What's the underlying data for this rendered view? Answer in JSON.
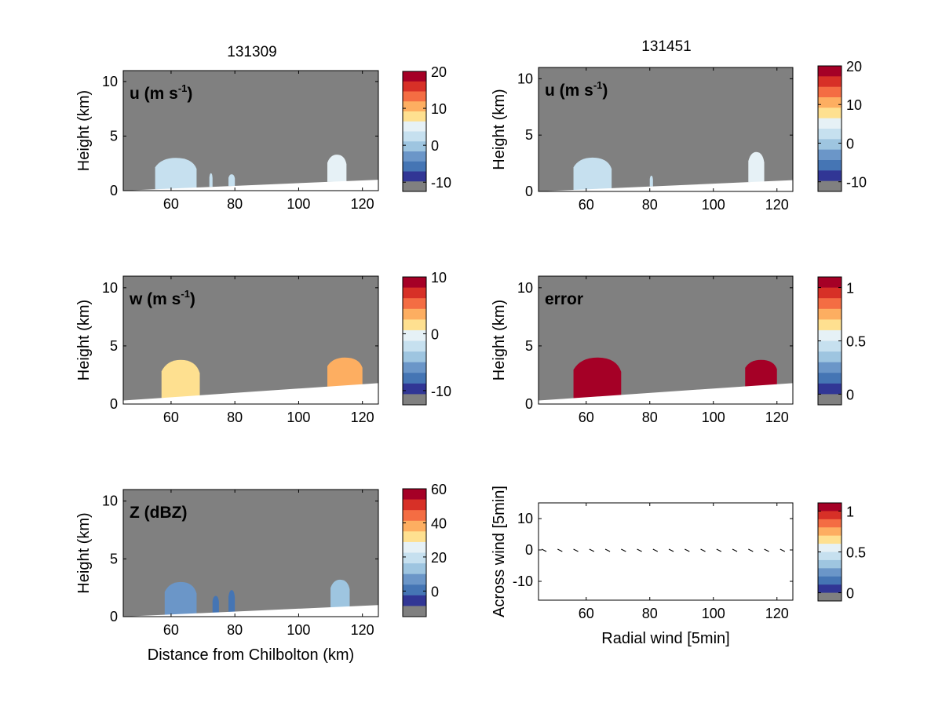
{
  "figure": {
    "titles": [
      "131309",
      "131451"
    ]
  },
  "colormap": {
    "grey": "#808080",
    "colors": [
      "#313695",
      "#4575b4",
      "#6b96c8",
      "#9ec5e0",
      "#c6e0ef",
      "#e6f1f6",
      "#fee090",
      "#fdae61",
      "#f46d43",
      "#d73027",
      "#a50026"
    ]
  },
  "chart_data": [
    {
      "type": "heatmap",
      "label_prefix": "u (m s",
      "label_sup": "-1",
      "label_suffix": ")",
      "title": "131309",
      "xlabel": "",
      "ylabel": "Height (km)",
      "xlim": [
        45,
        125
      ],
      "ylim": [
        0,
        11
      ],
      "xticks": [
        "60",
        "80",
        "100",
        "120"
      ],
      "yticks": [
        "0",
        "5",
        "10"
      ],
      "colorbar": {
        "ticks": [
          "20",
          "10",
          "0",
          "-10"
        ],
        "range": [
          -12.5,
          20
        ]
      },
      "ground_height_km": [
        0.0,
        1.0
      ],
      "echoes": [
        {
          "x_km": [
            55,
            68
          ],
          "top_km": 3.0,
          "value": 2
        },
        {
          "x_km": [
            72,
            73
          ],
          "top_km": 1.6,
          "value": 2
        },
        {
          "x_km": [
            78,
            80
          ],
          "top_km": 1.5,
          "value": 2
        },
        {
          "x_km": [
            109,
            115
          ],
          "top_km": 3.3,
          "value": 6
        }
      ]
    },
    {
      "type": "heatmap",
      "label_prefix": "u (m s",
      "label_sup": "-1",
      "label_suffix": ")",
      "title": "131451",
      "xlabel": "",
      "ylabel": "Height (km)",
      "xlim": [
        45,
        125
      ],
      "ylim": [
        0,
        11
      ],
      "xticks": [
        "60",
        "80",
        "100",
        "120"
      ],
      "yticks": [
        "0",
        "5",
        "10"
      ],
      "colorbar": {
        "ticks": [
          "20",
          "10",
          "0",
          "-10"
        ],
        "range": [
          -12.5,
          20
        ]
      },
      "ground_height_km": [
        0.0,
        1.0
      ],
      "echoes": [
        {
          "x_km": [
            56,
            68
          ],
          "top_km": 3.0,
          "value": 2
        },
        {
          "x_km": [
            80,
            81
          ],
          "top_km": 1.4,
          "value": 2
        },
        {
          "x_km": [
            111,
            116
          ],
          "top_km": 3.5,
          "value": 5
        }
      ]
    },
    {
      "type": "heatmap",
      "label_prefix": "w (m s",
      "label_sup": "-1",
      "label_suffix": ")",
      "title": "",
      "xlabel": "",
      "ylabel": "Height (km)",
      "xlim": [
        45,
        125
      ],
      "ylim": [
        0,
        11
      ],
      "xticks": [
        "60",
        "80",
        "100",
        "120"
      ],
      "yticks": [
        "0",
        "5",
        "10"
      ],
      "colorbar": {
        "ticks": [
          "10",
          "0",
          "-10"
        ],
        "range": [
          -12.5,
          10
        ]
      },
      "ground_height_km": [
        0.3,
        1.8
      ],
      "echoes": [
        {
          "x_km": [
            57,
            69
          ],
          "top_km": 3.8,
          "value": 1
        },
        {
          "x_km": [
            109,
            120
          ],
          "top_km": 4.0,
          "value": 3
        }
      ]
    },
    {
      "type": "heatmap",
      "label_prefix": "error",
      "label_sup": "",
      "label_suffix": "",
      "title": "",
      "xlabel": "",
      "ylabel": "Height (km)",
      "xlim": [
        45,
        125
      ],
      "ylim": [
        0,
        11
      ],
      "xticks": [
        "60",
        "80",
        "100",
        "120"
      ],
      "yticks": [
        "0",
        "5",
        "10"
      ],
      "colorbar": {
        "ticks": [
          "1",
          "0.5",
          "0"
        ],
        "range": [
          -0.1,
          1.1
        ]
      },
      "ground_height_km": [
        0.3,
        1.8
      ],
      "echoes": [
        {
          "x_km": [
            56,
            71
          ],
          "top_km": 4.0,
          "value": 1.0
        },
        {
          "x_km": [
            110,
            120
          ],
          "top_km": 3.8,
          "value": 1.0
        }
      ]
    },
    {
      "type": "heatmap",
      "label_prefix": "Z (dBZ)",
      "label_sup": "",
      "label_suffix": "",
      "title": "",
      "xlabel": "Distance from Chilbolton (km)",
      "ylabel": "Height (km)",
      "xlim": [
        45,
        125
      ],
      "ylim": [
        0,
        11
      ],
      "xticks": [
        "60",
        "80",
        "100",
        "120"
      ],
      "yticks": [
        "0",
        "5",
        "10"
      ],
      "colorbar": {
        "ticks": [
          "60",
          "40",
          "20",
          "0"
        ],
        "range": [
          -15,
          60
        ]
      },
      "ground_height_km": [
        0.0,
        1.0
      ],
      "echoes": [
        {
          "x_km": [
            58,
            68
          ],
          "top_km": 3.0,
          "value": 5
        },
        {
          "x_km": [
            73,
            75
          ],
          "top_km": 1.8,
          "value": 0
        },
        {
          "x_km": [
            78,
            80
          ],
          "top_km": 2.3,
          "value": 0
        },
        {
          "x_km": [
            110,
            116
          ],
          "top_km": 3.2,
          "value": 12
        }
      ]
    },
    {
      "type": "scatter",
      "title": "",
      "xlabel": "Radial wind [5min]",
      "ylabel": "Across wind [5min]",
      "xlim": [
        45,
        125
      ],
      "ylim": [
        -16,
        15
      ],
      "xticks": [
        "60",
        "80",
        "100",
        "120"
      ],
      "yticks": [
        "10",
        "0",
        "-10"
      ],
      "colorbar": {
        "ticks": [
          "1",
          "0.5",
          "0"
        ],
        "range": [
          -0.1,
          1.1
        ]
      },
      "arrows_x": [
        46,
        51,
        56,
        61,
        66,
        71,
        76,
        81,
        86,
        91,
        96,
        101,
        106,
        111,
        116,
        121
      ],
      "arrows_y": 0
    }
  ]
}
